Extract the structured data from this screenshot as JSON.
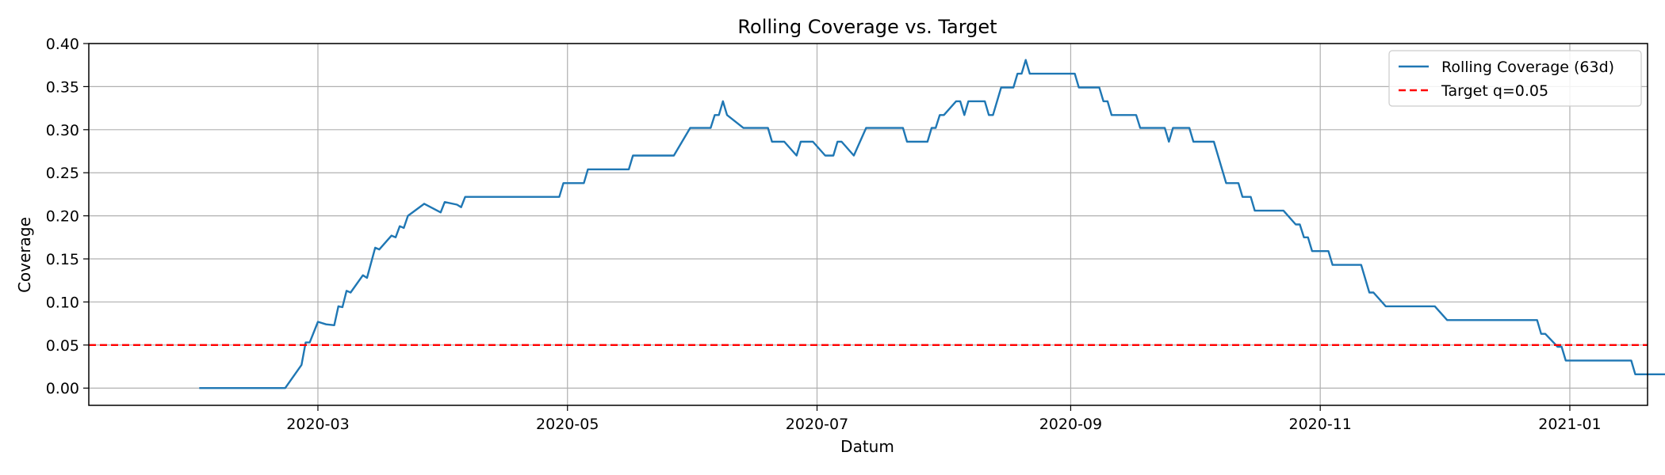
{
  "chart_data": {
    "type": "line",
    "title": "Rolling Coverage vs. Target",
    "xlabel": "Datum",
    "ylabel": "Coverage",
    "xlim": [
      "2020-01-05",
      "2021-01-20"
    ],
    "ylim": [
      -0.02,
      0.4
    ],
    "x_ticks": [
      "2020-03-01",
      "2020-05-01",
      "2020-07-01",
      "2020-09-01",
      "2020-11-01",
      "2021-01-01"
    ],
    "x_tick_labels": [
      "2020-03",
      "2020-05",
      "2020-07",
      "2020-09",
      "2020-11",
      "2021-01"
    ],
    "y_ticks": [
      0.0,
      0.05,
      0.1,
      0.15,
      0.2,
      0.25,
      0.3,
      0.35,
      0.4
    ],
    "y_tick_labels": [
      "0.00",
      "0.05",
      "0.10",
      "0.15",
      "0.20",
      "0.25",
      "0.30",
      "0.35",
      "0.40"
    ],
    "grid": true,
    "legend_position": "top-right",
    "series": [
      {
        "name": "Rolling Coverage (63d)",
        "color": "#1f77b4",
        "style": "solid",
        "points": [
          [
            "2020-02-01",
            0.0
          ],
          [
            "2020-02-22",
            0.0
          ],
          [
            "2020-02-26",
            0.027
          ],
          [
            "2020-02-27",
            0.053
          ],
          [
            "2020-02-28",
            0.053
          ],
          [
            "2020-03-01",
            0.077
          ],
          [
            "2020-03-03",
            0.074
          ],
          [
            "2020-03-05",
            0.073
          ],
          [
            "2020-03-06",
            0.095
          ],
          [
            "2020-03-07",
            0.094
          ],
          [
            "2020-03-08",
            0.113
          ],
          [
            "2020-03-09",
            0.111
          ],
          [
            "2020-03-12",
            0.131
          ],
          [
            "2020-03-13",
            0.128
          ],
          [
            "2020-03-15",
            0.163
          ],
          [
            "2020-03-16",
            0.161
          ],
          [
            "2020-03-19",
            0.177
          ],
          [
            "2020-03-20",
            0.175
          ],
          [
            "2020-03-21",
            0.188
          ],
          [
            "2020-03-22",
            0.186
          ],
          [
            "2020-03-23",
            0.2
          ],
          [
            "2020-03-25",
            0.207
          ],
          [
            "2020-03-27",
            0.214
          ],
          [
            "2020-03-31",
            0.204
          ],
          [
            "2020-04-01",
            0.216
          ],
          [
            "2020-04-04",
            0.213
          ],
          [
            "2020-04-05",
            0.21
          ],
          [
            "2020-04-06",
            0.222
          ],
          [
            "2020-04-29",
            0.222
          ],
          [
            "2020-04-30",
            0.238
          ],
          [
            "2020-05-05",
            0.238
          ],
          [
            "2020-05-06",
            0.254
          ],
          [
            "2020-05-16",
            0.254
          ],
          [
            "2020-05-17",
            0.27
          ],
          [
            "2020-05-27",
            0.27
          ],
          [
            "2020-05-31",
            0.302
          ],
          [
            "2020-06-05",
            0.302
          ],
          [
            "2020-06-06",
            0.317
          ],
          [
            "2020-06-07",
            0.317
          ],
          [
            "2020-06-08",
            0.333
          ],
          [
            "2020-06-09",
            0.317
          ],
          [
            "2020-06-13",
            0.302
          ],
          [
            "2020-06-19",
            0.302
          ],
          [
            "2020-06-20",
            0.286
          ],
          [
            "2020-06-23",
            0.286
          ],
          [
            "2020-06-26",
            0.27
          ],
          [
            "2020-06-27",
            0.286
          ],
          [
            "2020-06-30",
            0.286
          ],
          [
            "2020-07-03",
            0.27
          ],
          [
            "2020-07-05",
            0.27
          ],
          [
            "2020-07-06",
            0.286
          ],
          [
            "2020-07-07",
            0.286
          ],
          [
            "2020-07-10",
            0.27
          ],
          [
            "2020-07-13",
            0.302
          ],
          [
            "2020-07-22",
            0.302
          ],
          [
            "2020-07-23",
            0.286
          ],
          [
            "2020-07-28",
            0.286
          ],
          [
            "2020-07-29",
            0.302
          ],
          [
            "2020-07-30",
            0.302
          ],
          [
            "2020-07-31",
            0.317
          ],
          [
            "2020-08-01",
            0.317
          ],
          [
            "2020-08-04",
            0.333
          ],
          [
            "2020-08-05",
            0.333
          ],
          [
            "2020-08-06",
            0.317
          ],
          [
            "2020-08-07",
            0.333
          ],
          [
            "2020-08-11",
            0.333
          ],
          [
            "2020-08-12",
            0.317
          ],
          [
            "2020-08-13",
            0.317
          ],
          [
            "2020-08-15",
            0.349
          ],
          [
            "2020-08-18",
            0.349
          ],
          [
            "2020-08-19",
            0.365
          ],
          [
            "2020-08-20",
            0.365
          ],
          [
            "2020-08-21",
            0.381
          ],
          [
            "2020-08-22",
            0.365
          ],
          [
            "2020-09-02",
            0.365
          ],
          [
            "2020-09-03",
            0.349
          ],
          [
            "2020-09-08",
            0.349
          ],
          [
            "2020-09-09",
            0.333
          ],
          [
            "2020-09-10",
            0.333
          ],
          [
            "2020-09-11",
            0.317
          ],
          [
            "2020-09-17",
            0.317
          ],
          [
            "2020-09-18",
            0.302
          ],
          [
            "2020-09-24",
            0.302
          ],
          [
            "2020-09-25",
            0.286
          ],
          [
            "2020-09-26",
            0.302
          ],
          [
            "2020-09-30",
            0.302
          ],
          [
            "2020-10-01",
            0.286
          ],
          [
            "2020-10-06",
            0.286
          ],
          [
            "2020-10-09",
            0.238
          ],
          [
            "2020-10-12",
            0.238
          ],
          [
            "2020-10-13",
            0.222
          ],
          [
            "2020-10-15",
            0.222
          ],
          [
            "2020-10-16",
            0.206
          ],
          [
            "2020-10-23",
            0.206
          ],
          [
            "2020-10-26",
            0.19
          ],
          [
            "2020-10-27",
            0.19
          ],
          [
            "2020-10-28",
            0.175
          ],
          [
            "2020-10-29",
            0.175
          ],
          [
            "2020-10-30",
            0.159
          ],
          [
            "2020-11-03",
            0.159
          ],
          [
            "2020-11-04",
            0.143
          ],
          [
            "2020-11-11",
            0.143
          ],
          [
            "2020-11-13",
            0.111
          ],
          [
            "2020-11-14",
            0.111
          ],
          [
            "2020-11-17",
            0.095
          ],
          [
            "2020-11-29",
            0.095
          ],
          [
            "2020-12-02",
            0.079
          ],
          [
            "2020-12-24",
            0.079
          ],
          [
            "2020-12-25",
            0.063
          ],
          [
            "2020-12-26",
            0.063
          ],
          [
            "2020-12-29",
            0.048
          ],
          [
            "2020-12-30",
            0.048
          ],
          [
            "2020-12-31",
            0.032
          ],
          [
            "2021-01-16",
            0.032
          ],
          [
            "2021-01-17",
            0.016
          ],
          [
            "2021-01-25",
            0.016
          ]
        ]
      },
      {
        "name": "Target q=0.05",
        "color": "#ff0000",
        "style": "dashed",
        "y_constant": 0.05
      }
    ]
  }
}
